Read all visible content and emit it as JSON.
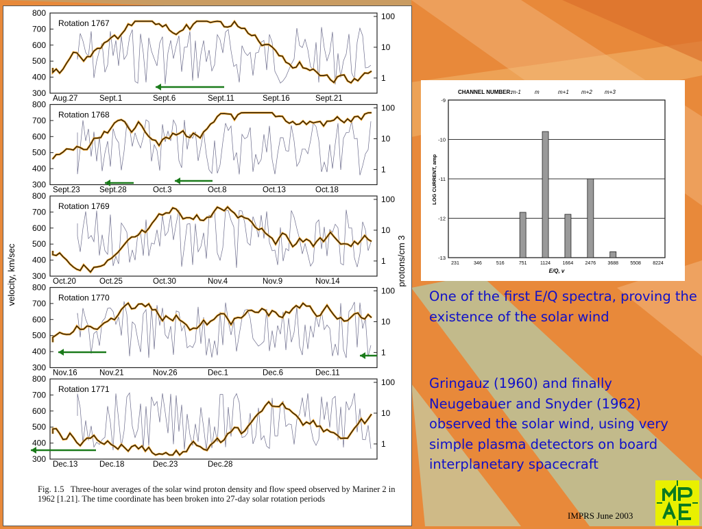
{
  "slide": {
    "text1": "One of the first E/Q spectra, proving the existence of the solar wind",
    "text2": "Gringauz (1960) and finally Neugebauer and Snyder (1962) observed the solar wind, using very simple plasma detectors on board interplanetary spacecraft",
    "footer": "IMPRS June 2003",
    "logo_text": "MPAE"
  },
  "solar_wind_figure": {
    "y_left_label": "velocity, km/sec",
    "y_right_label": "protons/cm 3",
    "y_left_ticks": [
      "800",
      "700",
      "600",
      "500",
      "400",
      "300"
    ],
    "y_right_ticks": [
      "100",
      "10",
      "1"
    ],
    "caption_prefix": "Fig. 1.5",
    "caption": "Three-hour averages of the solar wind proton density and flow speed observed by Mariner 2 in 1962 [1.21]. The time coordinate has been broken into 27-day solar rotation periods",
    "panels": [
      {
        "rotation": "Rotation 1767",
        "dates": [
          "Aug.27",
          "Sept.1",
          "Sept.6",
          "Sept.11",
          "Sept.16",
          "Sept.21"
        ]
      },
      {
        "rotation": "Rotation 1768",
        "dates": [
          "Sept.23",
          "Sept.28",
          "Oct.3",
          "Oct.8",
          "Oct.13",
          "Oct.18"
        ]
      },
      {
        "rotation": "Rotation 1769",
        "dates": [
          "Oct.20",
          "Oct.25",
          "Oct.30",
          "Nov.4",
          "Nov.9",
          "Nov.14"
        ]
      },
      {
        "rotation": "Rotation 1770",
        "dates": [
          "Nov.16",
          "Nov.21",
          "Nov.26",
          "Dec.1",
          "Dec.6",
          "Dec.11"
        ]
      },
      {
        "rotation": "Rotation 1771",
        "dates": [
          "Dec.13",
          "Dec.18",
          "Dec.23",
          "Dec.28"
        ]
      }
    ]
  },
  "spectrum_figure": {
    "header": "CHANNEL NUMBER:",
    "channels": [
      "m-1",
      "m",
      "m+1",
      "m+2",
      "m+3"
    ],
    "y_label": "LOG CURRENT, amp",
    "y_ticks": [
      "-9",
      "-10",
      "-11",
      "-12",
      "-13"
    ],
    "x_label": "E/Q, v",
    "x_ticks": [
      "231",
      "346",
      "516",
      "751",
      "1124",
      "1664",
      "2476",
      "3688",
      "5508",
      "8224"
    ]
  },
  "chart_data": {
    "type": "bar",
    "categories": [
      "231",
      "346",
      "516",
      "751",
      "1124",
      "1664",
      "2476",
      "3688",
      "5508",
      "8224"
    ],
    "values": [
      null,
      null,
      null,
      -11.85,
      -9.8,
      -11.9,
      -11.0,
      -12.85,
      null,
      null
    ],
    "xlabel": "E/Q, v",
    "ylabel": "LOG CURRENT, amp",
    "ylim": [
      -13,
      -9
    ],
    "grid": true
  },
  "colors": {
    "text_blue": "#1010c8",
    "orange_trace": "#f0a020",
    "green_arrow": "#1a7a1a",
    "logo_yellow": "#e9f000"
  }
}
